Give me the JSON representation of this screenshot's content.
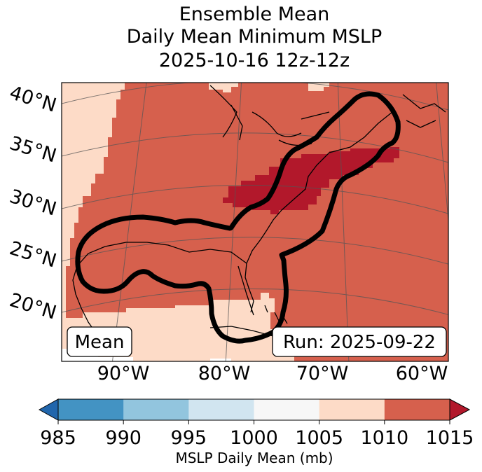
{
  "title": {
    "line1": "Ensemble Mean",
    "line2": "Daily Mean Minimum MSLP",
    "line3": "2025-10-16 12z-12z"
  },
  "map": {
    "lat_labels": [
      "40°N",
      "35°N",
      "30°N",
      "25°N",
      "20°N"
    ],
    "lon_labels": [
      "90°W",
      "80°W",
      "70°W",
      "60°W"
    ],
    "badge_left": "Mean",
    "badge_right": "Run: 2025-09-22"
  },
  "colorbar": {
    "label": "MSLP Daily Mean (mb)",
    "ticks": [
      "985",
      "990",
      "995",
      "1000",
      "1005",
      "1010",
      "1015"
    ],
    "colors": [
      "#4393c3",
      "#92c5de",
      "#d1e5f0",
      "#f7f7f7",
      "#fddbc7",
      "#d6604d"
    ],
    "under_color": "#2166ac",
    "over_color": "#b2182b"
  },
  "fields": {
    "light": "#fddbc7",
    "mid": "#d6604d",
    "dark": "#b2182b",
    "white": "#ffffff"
  }
}
